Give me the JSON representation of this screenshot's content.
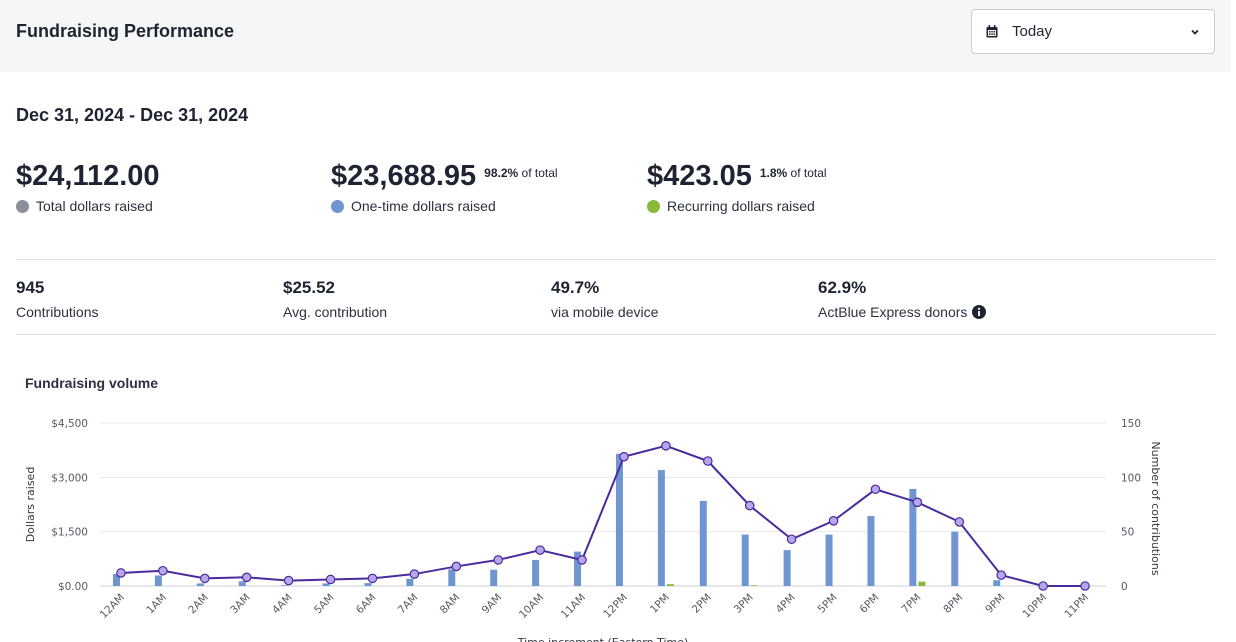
{
  "header": {
    "title": "Fundraising Performance",
    "date_select": {
      "value": "Today",
      "icon": "calendar-icon"
    }
  },
  "date_range": "Dec 31, 2024 - Dec 31, 2024",
  "totals": {
    "total": {
      "amount": "$24,112.00",
      "label": "Total dollars raised",
      "color": "#8a8f99"
    },
    "one_time": {
      "amount": "$23,688.95",
      "pct": "98.2%",
      "pct_suffix": "of total",
      "label": "One-time dollars raised",
      "color": "#6f96d1"
    },
    "recurring": {
      "amount": "$423.05",
      "pct": "1.8%",
      "pct_suffix": "of total",
      "label": "Recurring dollars raised",
      "color": "#8ab83a"
    }
  },
  "stats": {
    "contributions": {
      "value": "945",
      "label": "Contributions"
    },
    "avg": {
      "value": "$25.52",
      "label": "Avg. contribution"
    },
    "mobile": {
      "value": "49.7%",
      "label": "via mobile device"
    },
    "express": {
      "value": "62.9%",
      "label": "ActBlue Express donors",
      "icon": "info-icon"
    }
  },
  "chart_title": "Fundraising volume",
  "chart_data": {
    "type": "bar",
    "categories": [
      "12AM",
      "1AM",
      "2AM",
      "3AM",
      "4AM",
      "5AM",
      "6AM",
      "7AM",
      "8AM",
      "9AM",
      "10AM",
      "11AM",
      "12PM",
      "1PM",
      "2PM",
      "3PM",
      "4PM",
      "5PM",
      "6PM",
      "7PM",
      "8PM",
      "9PM",
      "10PM",
      "11PM"
    ],
    "series": [
      {
        "values": [
          330,
          290,
          70,
          130,
          20,
          70,
          80,
          200,
          460,
          450,
          720,
          950,
          3650,
          3200,
          2350,
          1420,
          990,
          1420,
          1930,
          2680,
          1500,
          160,
          0,
          0
        ],
        "color": "#6f96d1",
        "axis": "left"
      },
      {
        "values": [
          0,
          0,
          0,
          0,
          0,
          0,
          0,
          0,
          0,
          0,
          0,
          0,
          0,
          50,
          0,
          20,
          0,
          0,
          0,
          120,
          0,
          0,
          0,
          0
        ],
        "color": "#8ab83a",
        "axis": "left"
      },
      {
        "type": "line",
        "values": [
          12,
          14,
          7,
          8,
          5,
          6,
          7,
          11,
          18,
          24,
          33,
          24,
          119,
          129,
          115,
          74,
          43,
          60,
          89,
          77,
          59,
          10,
          0,
          0
        ],
        "color": "#4a2b9e",
        "axis": "right"
      }
    ],
    "ylabel": "Dollars raised",
    "y2label": "Number of contributions",
    "xlabel": "Time increment (Eastern Time)",
    "ylim": [
      0,
      4500
    ],
    "y2lim": [
      0,
      150
    ],
    "yticks": [
      "$0.00",
      "$1,500",
      "$3,000",
      "$4,500"
    ],
    "y2ticks": [
      "0",
      "50",
      "100",
      "150"
    ],
    "grid": true
  }
}
